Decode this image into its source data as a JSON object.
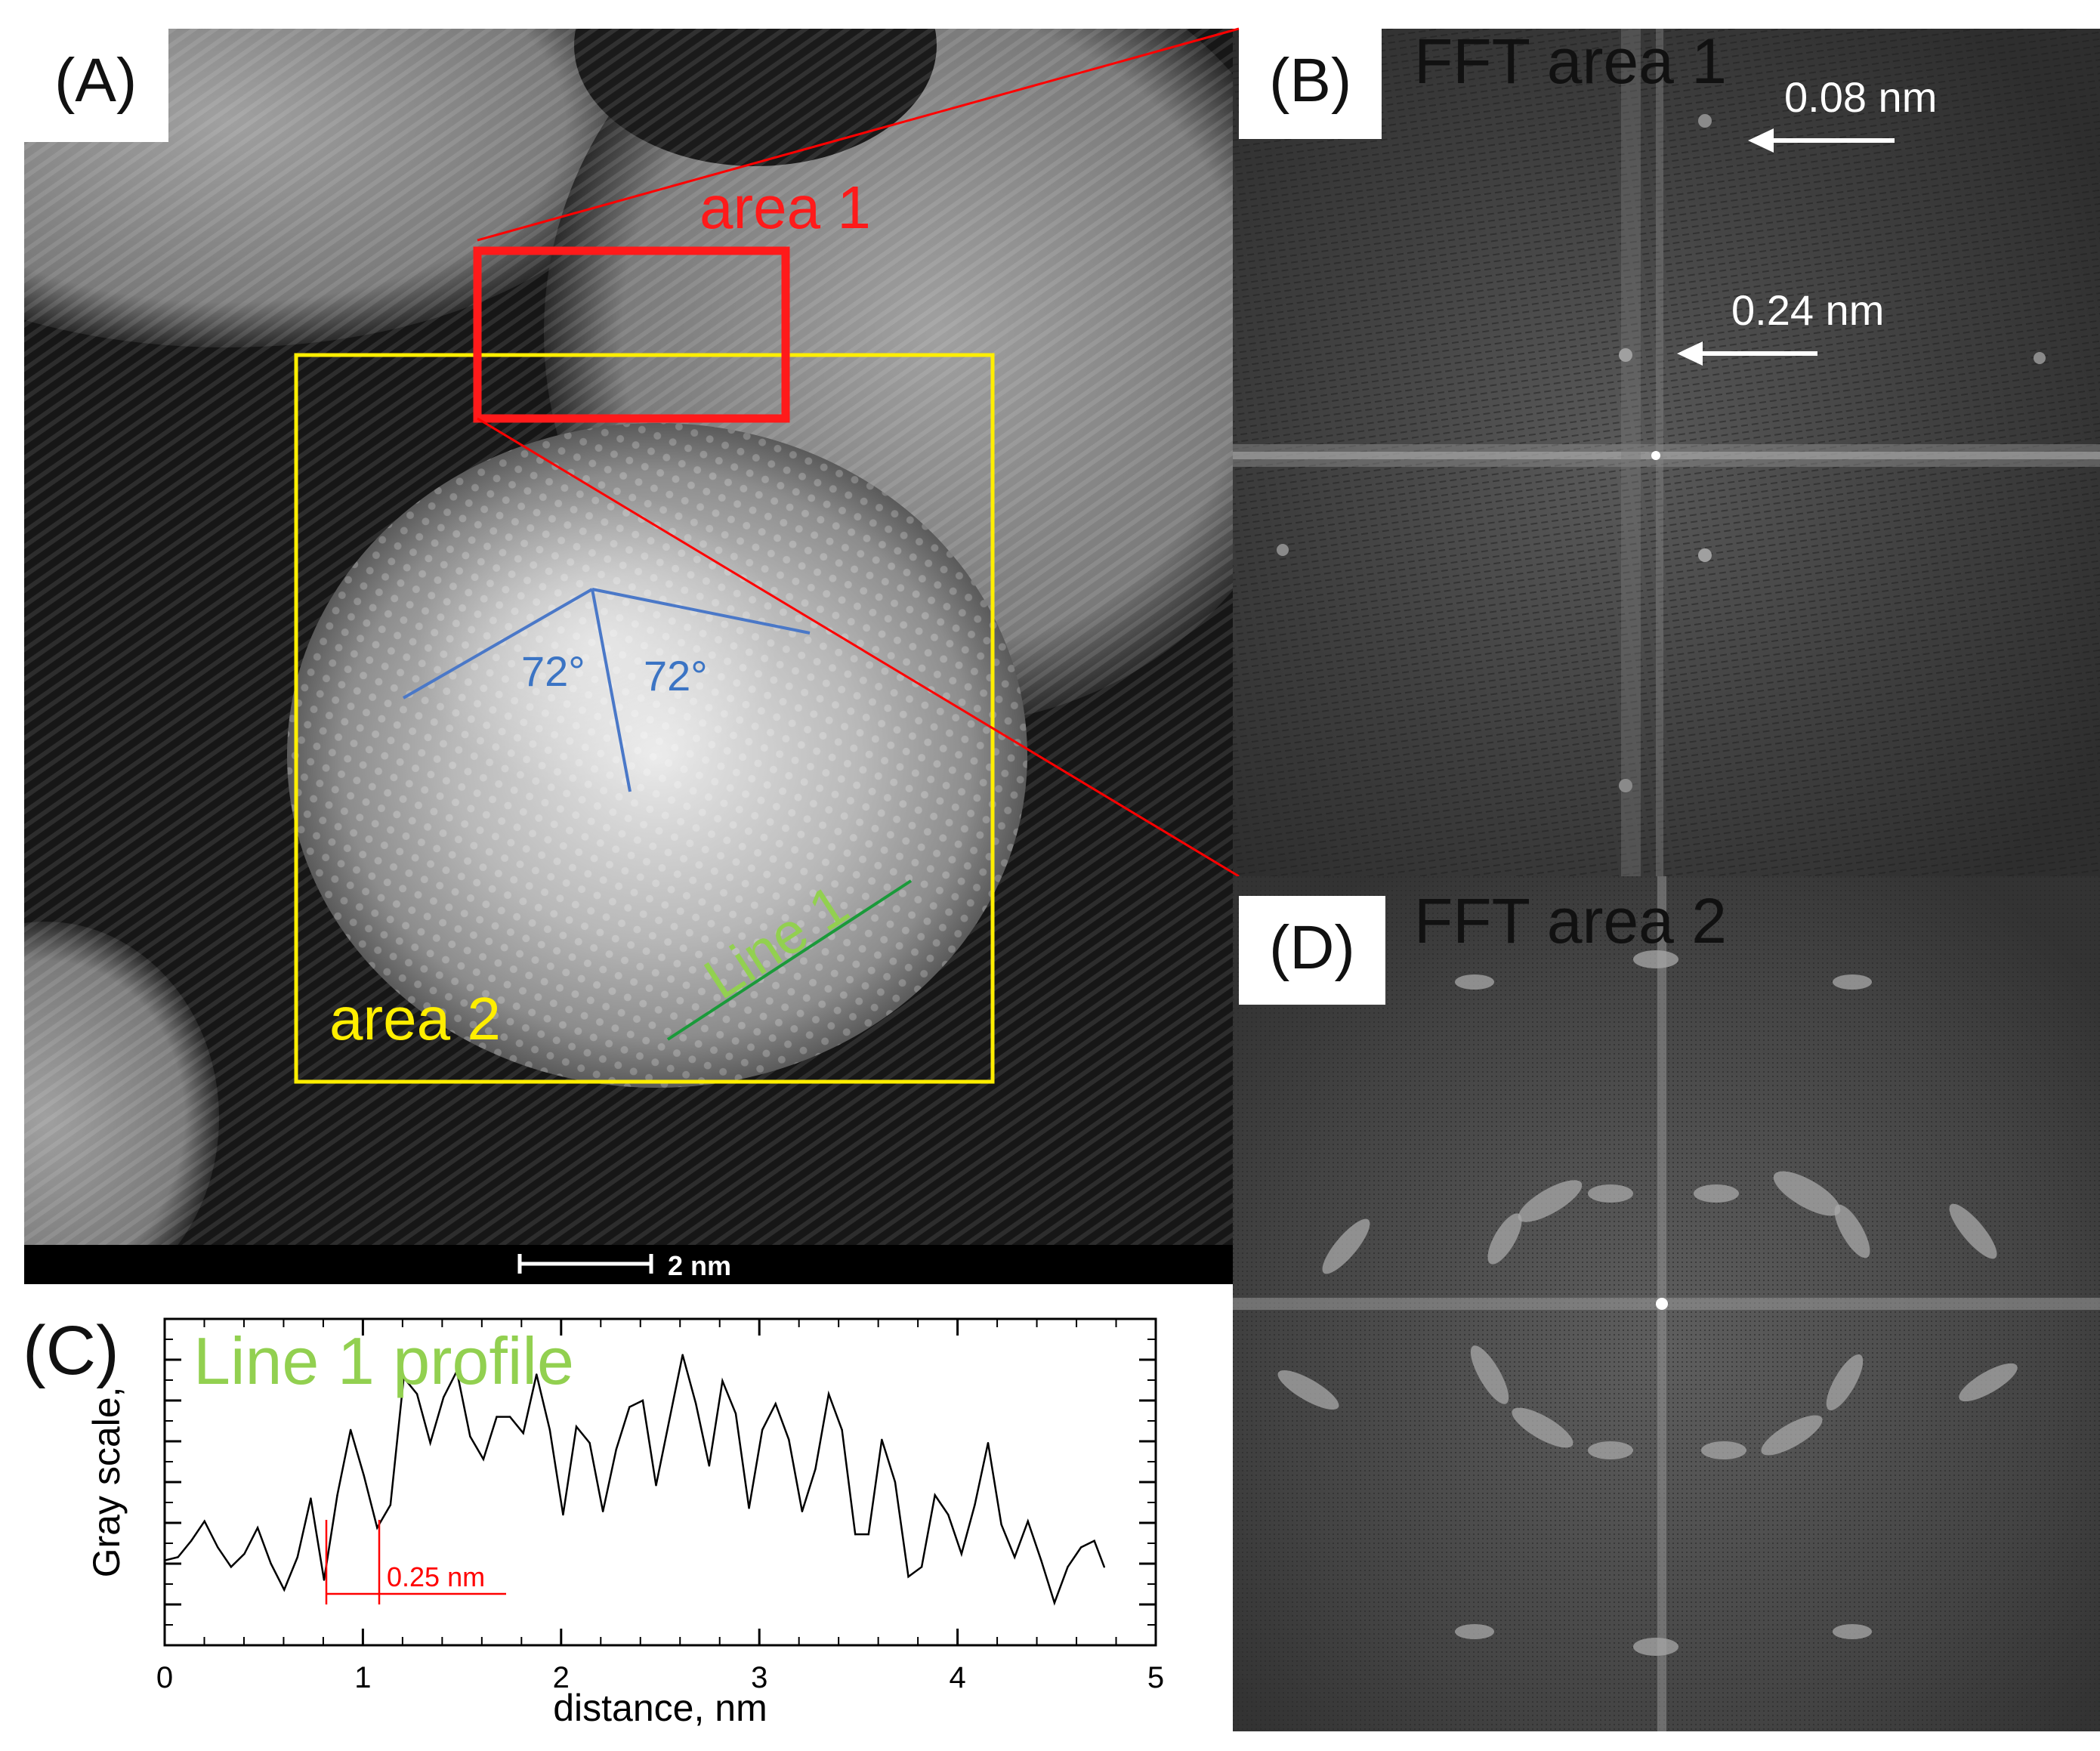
{
  "figure": {
    "panel_a": {
      "letter": "(A)",
      "area1_label": "area 1",
      "area2_label": "area 2",
      "angle_left": "72°",
      "angle_right": "72°",
      "line_label": "Line 1",
      "scale_bar_label": "2 nm"
    },
    "panel_b": {
      "letter": "(B)",
      "title": "FFT area 1",
      "arrow1_label": "0.08 nm",
      "arrow2_label": "0.24 nm"
    },
    "panel_c": {
      "letter": "(C)",
      "annotation": "0.25 nm"
    },
    "panel_d": {
      "letter": "(D)",
      "title": "FFT area 2"
    }
  },
  "colors": {
    "area1_box": "#ff1a1a",
    "area2_box": "#ffee00",
    "angle_lines": "#4a78c8",
    "line1": "#1a9a3a",
    "profile_title": "#92d050",
    "annotation_red": "#ff0000"
  },
  "chart_data": {
    "type": "line",
    "title": "Line 1 profile",
    "xlabel": "distance, nm",
    "ylabel": "Gray scale,",
    "xlim": [
      0,
      5
    ],
    "ylim": [
      0,
      1
    ],
    "xticks": [
      "0",
      "1",
      "2",
      "3",
      "4",
      "5"
    ],
    "grid": false,
    "series": [
      {
        "x": [
          0,
          0.067,
          0.134,
          0.201,
          0.268,
          0.335,
          0.402,
          0.469,
          0.536,
          0.603,
          0.67,
          0.737,
          0.804,
          0.871,
          0.938,
          1.005,
          1.072,
          1.139,
          1.206,
          1.273,
          1.34,
          1.407,
          1.474,
          1.541,
          1.608,
          1.675,
          1.742,
          1.809,
          1.876,
          1.943,
          2.01,
          2.077,
          2.144,
          2.211,
          2.278,
          2.345,
          2.412,
          2.479,
          2.546,
          2.613,
          2.68,
          2.747,
          2.814,
          2.881,
          2.948,
          3.015,
          3.082,
          3.149,
          3.216,
          3.283,
          3.35,
          3.417,
          3.484,
          3.551,
          3.618,
          3.685,
          3.752,
          3.819,
          3.886,
          3.953,
          4.02,
          4.087,
          4.154,
          4.221,
          4.288,
          4.355,
          4.422,
          4.489,
          4.556,
          4.623,
          4.69,
          4.74
        ],
        "y": [
          0.26,
          0.27,
          0.32,
          0.38,
          0.3,
          0.24,
          0.28,
          0.36,
          0.25,
          0.17,
          0.27,
          0.45,
          0.2,
          0.46,
          0.66,
          0.52,
          0.36,
          0.43,
          0.82,
          0.77,
          0.62,
          0.76,
          0.84,
          0.64,
          0.57,
          0.7,
          0.7,
          0.65,
          0.83,
          0.66,
          0.4,
          0.67,
          0.62,
          0.41,
          0.6,
          0.73,
          0.75,
          0.49,
          0.69,
          0.89,
          0.74,
          0.55,
          0.81,
          0.71,
          0.42,
          0.66,
          0.74,
          0.63,
          0.41,
          0.54,
          0.77,
          0.66,
          0.34,
          0.34,
          0.63,
          0.5,
          0.21,
          0.24,
          0.46,
          0.4,
          0.28,
          0.43,
          0.62,
          0.37,
          0.27,
          0.38,
          0.26,
          0.13,
          0.24,
          0.3,
          0.32,
          0.24
        ]
      }
    ]
  }
}
